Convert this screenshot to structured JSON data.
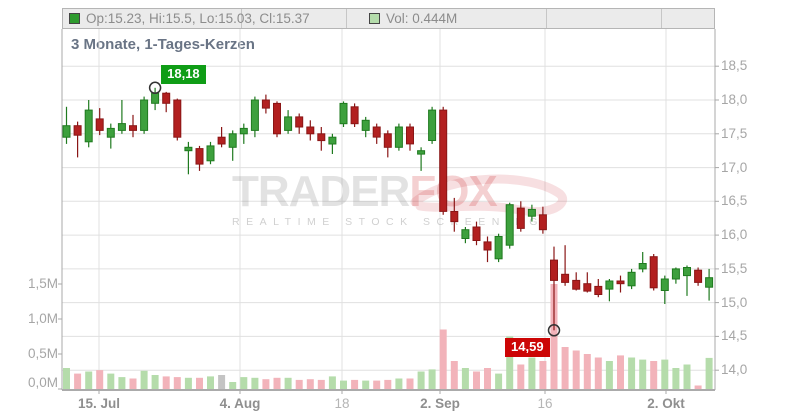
{
  "title": "3 Monate, 1-Tages-Kerzen",
  "legend": {
    "ohlc": {
      "label": "Op:15.23, Hi:15.5, Lo:15.03, Cl:15.37",
      "swatch_color": "#2e9b2e"
    },
    "volume": {
      "label": "Vol: 0.444M",
      "swatch_color": "#b4dcab"
    }
  },
  "watermark": {
    "brand_gray": "TRADER",
    "brand_red": "FOX",
    "tagline": "REALTIME STOCK SCREENING"
  },
  "chart_data": {
    "type": "candlestick_with_volume",
    "title": "3 Monate, 1-Tages-Kerzen",
    "period": "3 Monate",
    "interval": "1-Tages-Kerzen",
    "price_axis": {
      "side": "right",
      "range": [
        13.85,
        18.6
      ],
      "ticks": [
        {
          "label": "18,5",
          "value": 18.5
        },
        {
          "label": "18,0",
          "value": 18.0
        },
        {
          "label": "17,5",
          "value": 17.5
        },
        {
          "label": "17,0",
          "value": 17.0
        },
        {
          "label": "16,5",
          "value": 16.5
        },
        {
          "label": "16,0",
          "value": 16.0
        },
        {
          "label": "15,5",
          "value": 15.5
        },
        {
          "label": "15,0",
          "value": 15.0
        },
        {
          "label": "14,5",
          "value": 14.5
        },
        {
          "label": "14,0",
          "value": 14.0
        }
      ]
    },
    "volume_axis": {
      "side": "left",
      "range": [
        0,
        2.6
      ],
      "unit": "M",
      "ticks": [
        {
          "label": "1,5M",
          "value": 1.5
        },
        {
          "label": "1,0M",
          "value": 1.0
        },
        {
          "label": "0,5M",
          "value": 0.5
        },
        {
          "label": "0,0M",
          "value": 0.0
        }
      ]
    },
    "x_axis": {
      "ticks": [
        {
          "label": "15. Jul",
          "pos": 0.0567,
          "minor": false
        },
        {
          "label": "4. Aug",
          "pos": 0.2726,
          "minor": false
        },
        {
          "label": "18",
          "pos": 0.4288,
          "minor": true
        },
        {
          "label": "2. Sep",
          "pos": 0.5789,
          "minor": false
        },
        {
          "label": "16",
          "pos": 0.7397,
          "minor": true
        },
        {
          "label": "2. Okt",
          "pos": 0.925,
          "minor": false
        }
      ]
    },
    "annotations": {
      "high": {
        "label": "18,18",
        "value": 18.18,
        "index": 8,
        "badge_color": "#0f9d16"
      },
      "low": {
        "label": "14,59",
        "value": 14.59,
        "index": 44,
        "badge_color": "#cc0505"
      }
    },
    "colors": {
      "candle_up": "#3da03d",
      "candle_up_border": "#1f7a1f",
      "candle_down": "#b22020",
      "candle_down_border": "#8a1616",
      "vol_up": "#b5dcab",
      "vol_down": "#f2b3ba",
      "vol_neutral": "#c4c4c4",
      "grid": "#e0e0e0",
      "axis": "#a8a8a8",
      "marker_stroke": "#333333"
    },
    "candles": [
      {
        "o": 17.45,
        "h": 17.9,
        "l": 17.35,
        "c": 17.62,
        "v": 0.3
      },
      {
        "o": 17.62,
        "h": 17.68,
        "l": 17.15,
        "c": 17.48,
        "v": 0.22
      },
      {
        "o": 17.38,
        "h": 18.0,
        "l": 17.3,
        "c": 17.85,
        "v": 0.25
      },
      {
        "o": 17.72,
        "h": 17.88,
        "l": 17.48,
        "c": 17.55,
        "v": 0.27
      },
      {
        "o": 17.45,
        "h": 17.65,
        "l": 17.28,
        "c": 17.58,
        "v": 0.22
      },
      {
        "o": 17.55,
        "h": 18.0,
        "l": 17.5,
        "c": 17.65,
        "v": 0.17
      },
      {
        "o": 17.62,
        "h": 17.78,
        "l": 17.45,
        "c": 17.55,
        "v": 0.15
      },
      {
        "o": 17.55,
        "h": 18.05,
        "l": 17.5,
        "c": 18.0,
        "v": 0.26
      },
      {
        "o": 17.95,
        "h": 18.18,
        "l": 17.85,
        "c": 18.1,
        "v": 0.2
      },
      {
        "o": 18.1,
        "h": 18.12,
        "l": 17.82,
        "c": 17.95,
        "v": 0.18
      },
      {
        "o": 18.0,
        "h": 18.02,
        "l": 17.4,
        "c": 17.45,
        "v": 0.17
      },
      {
        "o": 17.25,
        "h": 17.38,
        "l": 16.9,
        "c": 17.3,
        "v": 0.16
      },
      {
        "o": 17.28,
        "h": 17.32,
        "l": 16.95,
        "c": 17.05,
        "v": 0.16
      },
      {
        "o": 17.1,
        "h": 17.38,
        "l": 17.05,
        "c": 17.32,
        "v": 0.18
      },
      {
        "o": 17.45,
        "h": 17.6,
        "l": 17.3,
        "c": 17.35,
        "v": 0.2,
        "vc": "n"
      },
      {
        "o": 17.3,
        "h": 17.55,
        "l": 17.1,
        "c": 17.5,
        "v": 0.1
      },
      {
        "o": 17.5,
        "h": 17.65,
        "l": 17.35,
        "c": 17.58,
        "v": 0.17
      },
      {
        "o": 17.55,
        "h": 18.05,
        "l": 17.45,
        "c": 18.0,
        "v": 0.16
      },
      {
        "o": 18.0,
        "h": 18.08,
        "l": 17.8,
        "c": 17.88,
        "v": 0.14
      },
      {
        "o": 17.95,
        "h": 17.98,
        "l": 17.45,
        "c": 17.5,
        "v": 0.16
      },
      {
        "o": 17.55,
        "h": 17.85,
        "l": 17.5,
        "c": 17.75,
        "v": 0.16
      },
      {
        "o": 17.75,
        "h": 17.8,
        "l": 17.5,
        "c": 17.6,
        "v": 0.13
      },
      {
        "o": 17.6,
        "h": 17.7,
        "l": 17.4,
        "c": 17.5,
        "v": 0.14
      },
      {
        "o": 17.5,
        "h": 17.6,
        "l": 17.25,
        "c": 17.4,
        "v": 0.13
      },
      {
        "o": 17.35,
        "h": 17.5,
        "l": 17.2,
        "c": 17.45,
        "v": 0.18
      },
      {
        "o": 17.65,
        "h": 17.98,
        "l": 17.6,
        "c": 17.95,
        "v": 0.12
      },
      {
        "o": 17.9,
        "h": 17.95,
        "l": 17.6,
        "c": 17.65,
        "v": 0.13
      },
      {
        "o": 17.55,
        "h": 17.75,
        "l": 17.45,
        "c": 17.7,
        "v": 0.12
      },
      {
        "o": 17.6,
        "h": 17.65,
        "l": 17.35,
        "c": 17.45,
        "v": 0.12
      },
      {
        "o": 17.5,
        "h": 17.55,
        "l": 17.15,
        "c": 17.3,
        "v": 0.13
      },
      {
        "o": 17.3,
        "h": 17.65,
        "l": 17.25,
        "c": 17.6,
        "v": 0.15
      },
      {
        "o": 17.6,
        "h": 17.65,
        "l": 17.25,
        "c": 17.35,
        "v": 0.15
      },
      {
        "o": 17.2,
        "h": 17.3,
        "l": 16.95,
        "c": 17.25,
        "v": 0.25
      },
      {
        "o": 17.4,
        "h": 17.9,
        "l": 17.35,
        "c": 17.85,
        "v": 0.28
      },
      {
        "o": 17.85,
        "h": 17.9,
        "l": 16.3,
        "c": 16.35,
        "v": 0.85
      },
      {
        "o": 16.35,
        "h": 16.55,
        "l": 16.05,
        "c": 16.2,
        "v": 0.4
      },
      {
        "o": 15.95,
        "h": 16.12,
        "l": 15.88,
        "c": 16.08,
        "v": 0.3
      },
      {
        "o": 16.12,
        "h": 16.2,
        "l": 15.85,
        "c": 15.92,
        "v": 0.25
      },
      {
        "o": 15.9,
        "h": 15.98,
        "l": 15.6,
        "c": 15.78,
        "v": 0.3
      },
      {
        "o": 15.65,
        "h": 16.02,
        "l": 15.6,
        "c": 15.98,
        "v": 0.22
      },
      {
        "o": 15.85,
        "h": 16.48,
        "l": 15.8,
        "c": 16.45,
        "v": 0.75
      },
      {
        "o": 16.4,
        "h": 16.5,
        "l": 16.05,
        "c": 16.1,
        "v": 0.35
      },
      {
        "o": 16.28,
        "h": 16.45,
        "l": 16.2,
        "c": 16.38,
        "v": 0.45
      },
      {
        "o": 16.3,
        "h": 16.42,
        "l": 16.02,
        "c": 16.08,
        "v": 0.4
      },
      {
        "o": 15.63,
        "h": 15.83,
        "l": 14.59,
        "c": 15.33,
        "v": 1.5
      },
      {
        "o": 15.42,
        "h": 15.85,
        "l": 15.25,
        "c": 15.3,
        "v": 0.6
      },
      {
        "o": 15.33,
        "h": 15.45,
        "l": 15.18,
        "c": 15.2,
        "v": 0.55
      },
      {
        "o": 15.28,
        "h": 15.45,
        "l": 15.15,
        "c": 15.17,
        "v": 0.5
      },
      {
        "o": 15.24,
        "h": 15.35,
        "l": 15.08,
        "c": 15.12,
        "v": 0.45
      },
      {
        "o": 15.2,
        "h": 15.35,
        "l": 15.02,
        "c": 15.32,
        "v": 0.4
      },
      {
        "o": 15.32,
        "h": 15.4,
        "l": 15.15,
        "c": 15.28,
        "v": 0.48
      },
      {
        "o": 15.25,
        "h": 15.5,
        "l": 15.2,
        "c": 15.45,
        "v": 0.45
      },
      {
        "o": 15.5,
        "h": 15.75,
        "l": 15.45,
        "c": 15.58,
        "v": 0.42
      },
      {
        "o": 15.68,
        "h": 15.72,
        "l": 15.18,
        "c": 15.22,
        "v": 0.4
      },
      {
        "o": 15.18,
        "h": 15.4,
        "l": 14.98,
        "c": 15.35,
        "v": 0.42
      },
      {
        "o": 15.35,
        "h": 15.52,
        "l": 15.28,
        "c": 15.5,
        "v": 0.3
      },
      {
        "o": 15.4,
        "h": 15.55,
        "l": 15.1,
        "c": 15.52,
        "v": 0.35
      },
      {
        "o": 15.48,
        "h": 15.52,
        "l": 15.25,
        "c": 15.3,
        "v": 0.05
      },
      {
        "o": 15.23,
        "h": 15.5,
        "l": 15.03,
        "c": 15.37,
        "v": 0.444
      }
    ]
  }
}
